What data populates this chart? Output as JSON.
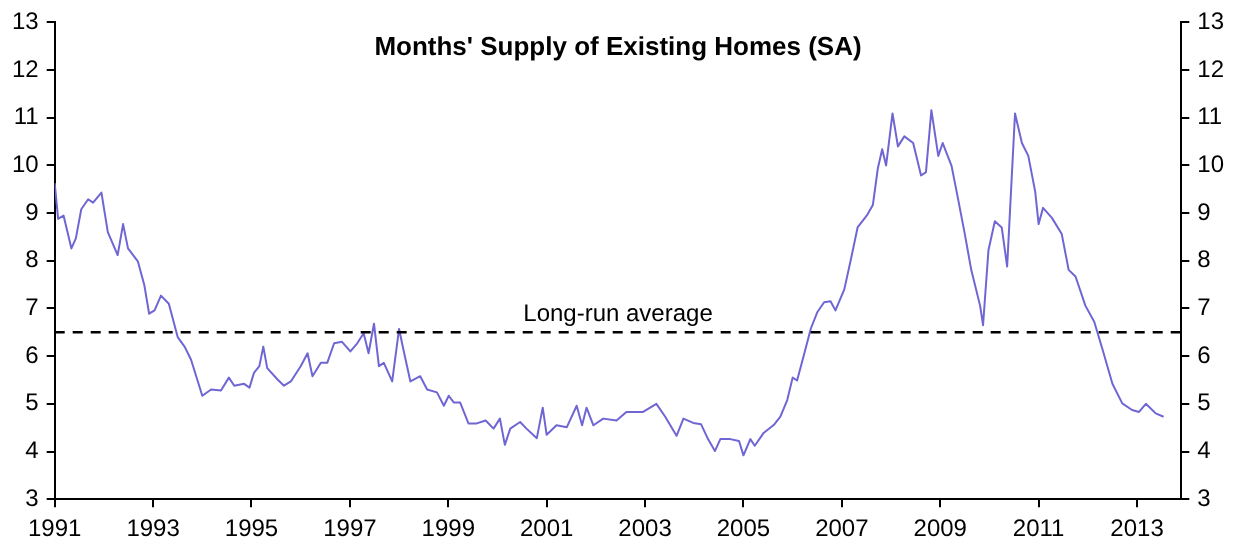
{
  "chart_data": {
    "type": "line",
    "title": "Months' Supply of Existing Homes (SA)",
    "xlim": [
      1991,
      2013.9
    ],
    "xticks": [
      1991,
      1993,
      1995,
      1997,
      1999,
      2001,
      2003,
      2005,
      2007,
      2009,
      2011,
      2013
    ],
    "ylim": [
      3,
      13
    ],
    "yticks": [
      3,
      4,
      5,
      6,
      7,
      8,
      9,
      10,
      11,
      12,
      13
    ],
    "y2lim": [
      3,
      13
    ],
    "y2ticks": [
      3,
      4,
      5,
      6,
      7,
      8,
      9,
      10,
      11,
      12,
      13
    ],
    "grid": false,
    "legend": false,
    "marker": "none",
    "line_style": "solid",
    "ref_lines": [
      {
        "axis": "y",
        "value": 6.5,
        "label": "Long-run average",
        "color": "#000000",
        "line_style": "dashed"
      }
    ],
    "series": [
      {
        "color": "#6f66d4",
        "x": [
          1991.0,
          1991.07,
          1991.18,
          1991.34,
          1991.43,
          1991.54,
          1991.68,
          1991.78,
          1991.95,
          1992.08,
          1992.28,
          1992.39,
          1992.49,
          1992.69,
          1992.82,
          1992.92,
          1993.03,
          1993.16,
          1993.32,
          1993.5,
          1993.64,
          1993.77,
          1993.91,
          1994.0,
          1994.18,
          1994.38,
          1994.54,
          1994.65,
          1994.85,
          1994.96,
          1995.05,
          1995.16,
          1995.24,
          1995.32,
          1995.53,
          1995.66,
          1995.8,
          1996.0,
          1996.14,
          1996.24,
          1996.41,
          1996.54,
          1996.68,
          1996.84,
          1997.01,
          1997.15,
          1997.28,
          1997.38,
          1997.49,
          1997.59,
          1997.69,
          1997.86,
          1998.0,
          1998.09,
          1998.23,
          1998.43,
          1998.57,
          1998.77,
          1998.91,
          1999.01,
          1999.11,
          1999.24,
          1999.41,
          1999.58,
          1999.76,
          1999.92,
          2000.05,
          2000.15,
          2000.26,
          2000.46,
          2000.59,
          2000.8,
          2000.92,
          2001.0,
          2001.2,
          2001.41,
          2001.61,
          2001.72,
          2001.81,
          2001.95,
          2002.15,
          2002.42,
          2002.62,
          2002.96,
          2003.23,
          2003.41,
          2003.64,
          2003.78,
          2003.98,
          2004.14,
          2004.28,
          2004.42,
          2004.53,
          2004.73,
          2004.91,
          2005.0,
          2005.14,
          2005.23,
          2005.41,
          2005.62,
          2005.75,
          2005.89,
          2006.0,
          2006.09,
          2006.23,
          2006.37,
          2006.5,
          2006.64,
          2006.77,
          2006.87,
          2007.05,
          2007.18,
          2007.32,
          2007.52,
          2007.63,
          2007.73,
          2007.82,
          2007.9,
          2008.03,
          2008.14,
          2008.27,
          2008.45,
          2008.61,
          2008.71,
          2008.82,
          2008.96,
          2009.05,
          2009.23,
          2009.36,
          2009.5,
          2009.63,
          2009.81,
          2009.87,
          2009.98,
          2010.11,
          2010.25,
          2010.36,
          2010.52,
          2010.66,
          2010.79,
          2010.93,
          2011.0,
          2011.09,
          2011.27,
          2011.47,
          2011.61,
          2011.75,
          2011.95,
          2012.13,
          2012.29,
          2012.5,
          2012.7,
          2012.9,
          2013.04,
          2013.18,
          2013.38,
          2013.54
        ],
        "values": [
          9.63,
          8.88,
          8.95,
          8.26,
          8.47,
          9.08,
          9.29,
          9.22,
          9.43,
          8.6,
          8.12,
          8.77,
          8.26,
          7.99,
          7.5,
          6.89,
          6.96,
          7.27,
          7.1,
          6.4,
          6.2,
          5.93,
          5.47,
          5.17,
          5.3,
          5.28,
          5.55,
          5.38,
          5.42,
          5.34,
          5.65,
          5.79,
          6.2,
          5.75,
          5.51,
          5.38,
          5.47,
          5.79,
          6.06,
          5.58,
          5.86,
          5.86,
          6.27,
          6.3,
          6.1,
          6.27,
          6.48,
          6.06,
          6.68,
          5.79,
          5.86,
          5.47,
          6.57,
          6.13,
          5.47,
          5.58,
          5.3,
          5.24,
          4.96,
          5.17,
          5.03,
          5.03,
          4.59,
          4.59,
          4.65,
          4.48,
          4.69,
          4.14,
          4.48,
          4.62,
          4.48,
          4.28,
          4.92,
          4.35,
          4.55,
          4.51,
          4.96,
          4.55,
          4.92,
          4.55,
          4.69,
          4.65,
          4.83,
          4.83,
          5.0,
          4.73,
          4.33,
          4.69,
          4.6,
          4.57,
          4.26,
          4.01,
          4.26,
          4.26,
          4.22,
          3.92,
          4.26,
          4.12,
          4.39,
          4.56,
          4.73,
          5.08,
          5.55,
          5.49,
          6.03,
          6.58,
          6.92,
          7.13,
          7.15,
          6.96,
          7.4,
          8.01,
          8.7,
          8.97,
          9.17,
          9.93,
          10.34,
          10.0,
          11.09,
          10.4,
          10.61,
          10.47,
          9.79,
          9.86,
          11.16,
          10.2,
          10.47,
          9.99,
          9.31,
          8.56,
          7.81,
          7.06,
          6.65,
          8.22,
          8.83,
          8.7,
          7.88,
          11.09,
          10.47,
          10.2,
          9.45,
          8.77,
          9.11,
          8.9,
          8.56,
          7.81,
          7.67,
          7.06,
          6.72,
          6.17,
          5.42,
          5.01,
          4.87,
          4.83,
          5.0,
          4.8,
          4.73
        ]
      }
    ]
  }
}
